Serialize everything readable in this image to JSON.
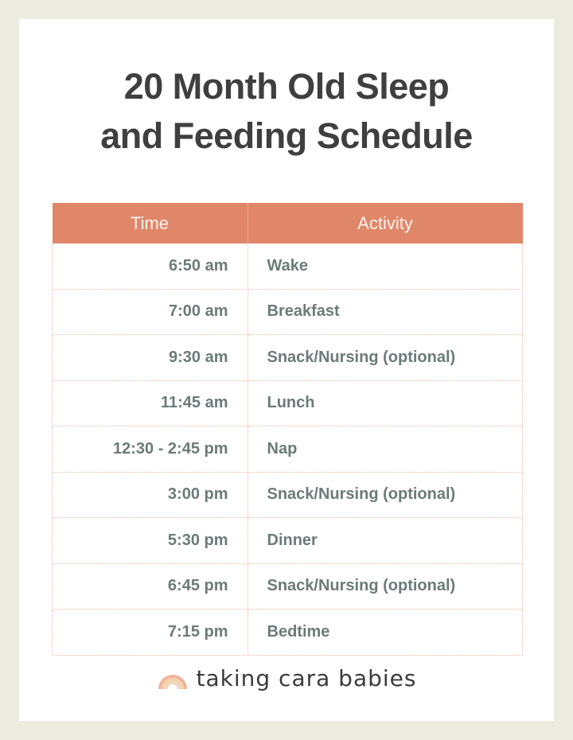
{
  "title": {
    "line1": "20 Month Old Sleep",
    "line2": "and Feeding Schedule"
  },
  "table": {
    "headers": {
      "time": "Time",
      "activity": "Activity"
    },
    "rows": [
      {
        "time": "6:50 am",
        "activity": "Wake"
      },
      {
        "time": "7:00 am",
        "activity": "Breakfast"
      },
      {
        "time": "9:30 am",
        "activity": "Snack/Nursing (optional)"
      },
      {
        "time": "11:45 am",
        "activity": "Lunch"
      },
      {
        "time": "12:30 - 2:45 pm",
        "activity": "Nap"
      },
      {
        "time": "3:00 pm",
        "activity": "Snack/Nursing (optional)"
      },
      {
        "time": "5:30 pm",
        "activity": "Dinner"
      },
      {
        "time": "6:45 pm",
        "activity": "Snack/Nursing (optional)"
      },
      {
        "time": "7:15 pm",
        "activity": "Bedtime"
      }
    ]
  },
  "brand": {
    "name": "taking cara babies",
    "icon": "rainbow-icon"
  },
  "colors": {
    "header": "#e0876a",
    "text": "#6b7b78",
    "title": "#3f3f3f",
    "frame": "#ecebdf"
  }
}
